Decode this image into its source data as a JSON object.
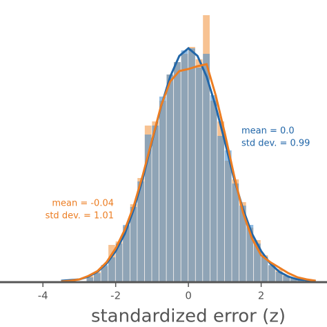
{
  "chart_data": {
    "type": "histogram",
    "x_label": "standardized error (z)",
    "xlim": [
      -5.18,
      3.81
    ],
    "ylim": [
      0,
      408
    ],
    "xticks": [
      -4,
      -2,
      0,
      2
    ],
    "bins": [
      -2.8,
      -2.6,
      -2.4,
      -2.2,
      -2.0,
      -1.8,
      -1.6,
      -1.4,
      -1.2,
      -1.0,
      -0.8,
      -0.6,
      -0.4,
      -0.2,
      0.0,
      0.2,
      0.4,
      0.6,
      0.8,
      1.0,
      1.2,
      1.4,
      1.6,
      1.8,
      2.0,
      2.2,
      2.4,
      2.6,
      2.8,
      3.0,
      3.2,
      3.4
    ],
    "series": [
      {
        "color": "#f29a4a",
        "values": [
          8,
          14,
          22,
          53,
          58,
          80,
          112,
          150,
          226,
          232,
          262,
          300,
          318,
          330,
          340,
          322,
          386,
          262,
          232,
          175,
          148,
          115,
          78,
          60,
          38,
          23,
          18,
          9,
          5,
          3,
          1
        ]
      },
      {
        "color": "#4a90cf",
        "values": [
          6,
          12,
          24,
          35,
          55,
          82,
          108,
          145,
          213,
          226,
          268,
          300,
          318,
          335,
          338,
          310,
          330,
          270,
          211,
          190,
          142,
          110,
          82,
          55,
          36,
          24,
          14,
          8,
          4,
          2,
          1
        ]
      }
    ],
    "curves": [
      {
        "color": "#2166a8",
        "x": [
          -3.5,
          -3.25,
          -3,
          -2.75,
          -2.5,
          -2.25,
          -2,
          -1.75,
          -1.5,
          -1.25,
          -1,
          -0.75,
          -0.5,
          -0.25,
          0,
          0.25,
          0.5,
          0.75,
          1,
          1.25,
          1.5,
          1.75,
          2,
          2.25,
          2.5,
          2.75,
          3,
          3.25,
          3.5
        ],
        "values": [
          1,
          2,
          3,
          7,
          14,
          26,
          44,
          69,
          105,
          150,
          203,
          254,
          297,
          327,
          338,
          327,
          297,
          254,
          203,
          150,
          105,
          69,
          44,
          26,
          14,
          7,
          3,
          2,
          1
        ]
      },
      {
        "color": "#ec7d22",
        "x": [
          -3.5,
          -3.25,
          -3,
          -2.75,
          -2.5,
          -2.25,
          -2,
          -1.75,
          -1.5,
          -1.25,
          -1,
          -0.75,
          -0.5,
          -0.25,
          0,
          0.25,
          0.5,
          0.75,
          1,
          1.25,
          1.5,
          1.75,
          2,
          2.25,
          2.5,
          2.75,
          3,
          3.25,
          3.5
        ],
        "values": [
          0,
          1,
          3,
          8,
          15,
          28,
          48,
          75,
          110,
          155,
          205,
          255,
          290,
          305,
          308,
          312,
          315,
          270,
          215,
          155,
          100,
          62,
          38,
          28,
          20,
          12,
          6,
          3,
          1
        ]
      }
    ],
    "annotations": [
      {
        "text": "mean = 0.0",
        "color": "#2166a8"
      },
      {
        "text": "std dev. = 0.99",
        "color": "#2166a8"
      },
      {
        "text": "mean = -0.04",
        "color": "#ec7d22"
      },
      {
        "text": "std dev. = 1.01",
        "color": "#ec7d22"
      }
    ]
  }
}
